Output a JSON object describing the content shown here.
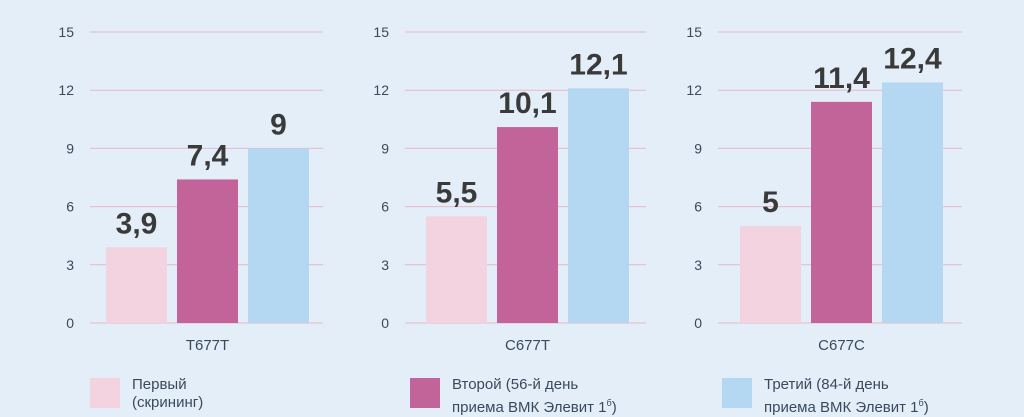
{
  "chart_data": [
    {
      "type": "bar",
      "categories": [
        "T677T"
      ],
      "series": [
        {
          "name": "Первый (скрининг)",
          "values": [
            3.9
          ],
          "labels": [
            "3,9"
          ]
        },
        {
          "name": "Второй (56-й день приема ВМК Элевит 1⁶)",
          "values": [
            7.4
          ],
          "labels": [
            "7,4"
          ]
        },
        {
          "name": "Третий (84-й день приема ВМК Элевит 1⁶)",
          "values": [
            9
          ],
          "labels": [
            "9"
          ]
        }
      ],
      "xlabel": "T677T",
      "yticks": [
        "0",
        "3",
        "6",
        "9",
        "12",
        "15"
      ],
      "ylim": [
        0,
        15
      ],
      "grid": true
    },
    {
      "type": "bar",
      "categories": [
        "C677T"
      ],
      "series": [
        {
          "name": "Первый (скрининг)",
          "values": [
            5.5
          ],
          "labels": [
            "5,5"
          ]
        },
        {
          "name": "Второй (56-й день приема ВМК Элевит 1⁶)",
          "values": [
            10.1
          ],
          "labels": [
            "10,1"
          ]
        },
        {
          "name": "Третий (84-й день приема ВМК Элевит 1⁶)",
          "values": [
            12.1
          ],
          "labels": [
            "12,1"
          ]
        }
      ],
      "xlabel": "C677T",
      "yticks": [
        "0",
        "3",
        "6",
        "9",
        "12",
        "15"
      ],
      "ylim": [
        0,
        15
      ],
      "grid": true
    },
    {
      "type": "bar",
      "categories": [
        "C677C"
      ],
      "series": [
        {
          "name": "Первый (скрининг)",
          "values": [
            5
          ],
          "labels": [
            "5"
          ]
        },
        {
          "name": "Второй (56-й день приема ВМК Элевит 1⁶)",
          "values": [
            11.4
          ],
          "labels": [
            "11,4"
          ]
        },
        {
          "name": "Третий (84-й день приема ВМК Элевит 1⁶)",
          "values": [
            12.4
          ],
          "labels": [
            "12,4"
          ]
        }
      ],
      "xlabel": "C677C",
      "yticks": [
        "0",
        "3",
        "6",
        "9",
        "12",
        "15"
      ],
      "ylim": [
        0,
        15
      ],
      "grid": true
    }
  ],
  "colors": {
    "first": "#f2d3df",
    "second": "#c2649a",
    "third": "#b4d8f2",
    "grid": "#e8b8c8",
    "text": "#3a4a5c",
    "value": "#3a3a3a"
  },
  "legend": {
    "first": {
      "line1": "Первый",
      "line2": "(скрининг)"
    },
    "second": {
      "line1": "Второй (56-й день",
      "line2": "приема ВМК Элевит 1",
      "sup": "б",
      "tail": ")"
    },
    "third": {
      "line1": "Третий (84-й день",
      "line2": "приема ВМК Элевит 1",
      "sup": "б",
      "tail": ")"
    }
  }
}
